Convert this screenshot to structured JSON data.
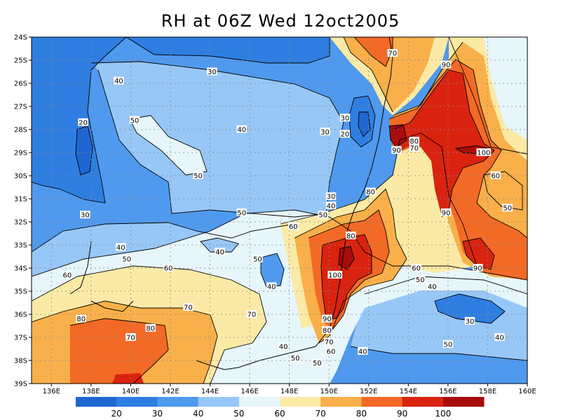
{
  "title": "RH at 06Z Wed 12oct2005",
  "chart_data": {
    "type": "filled-contour-map",
    "variable": "Relative Humidity",
    "lon_range": [
      135,
      160
    ],
    "lat_range": [
      -39,
      -24
    ],
    "x_ticks": [
      "136E",
      "138E",
      "140E",
      "142E",
      "144E",
      "146E",
      "148E",
      "150E",
      "152E",
      "154E",
      "156E",
      "158E",
      "160E"
    ],
    "y_ticks": [
      "24S",
      "25S",
      "26S",
      "27S",
      "28S",
      "29S",
      "30S",
      "31S",
      "32S",
      "33S",
      "34S",
      "35S",
      "36S",
      "37S",
      "38S",
      "39S"
    ],
    "contour_levels": [
      10,
      20,
      30,
      40,
      50,
      60,
      70,
      80,
      90,
      100,
      110
    ],
    "colorbar": {
      "labels": [
        "20",
        "30",
        "40",
        "50",
        "60",
        "70",
        "80",
        "90",
        "100"
      ],
      "colors": [
        "#1f66d3",
        "#2e7ee2",
        "#4f99ee",
        "#97c7f7",
        "#e6f6fb",
        "#fbeaa6",
        "#f9b04a",
        "#f26a26",
        "#d9230f",
        "#a80c0c"
      ]
    },
    "contour_labels": [
      {
        "text": "30",
        "lon": 144.1,
        "lat": -25.5
      },
      {
        "text": "40",
        "lon": 139.4,
        "lat": -25.9
      },
      {
        "text": "20",
        "lon": 137.6,
        "lat": -27.7
      },
      {
        "text": "50",
        "lon": 140.2,
        "lat": -27.6
      },
      {
        "text": "40",
        "lon": 145.6,
        "lat": -28.0
      },
      {
        "text": "50",
        "lon": 143.4,
        "lat": -30.0
      },
      {
        "text": "30",
        "lon": 137.7,
        "lat": -31.7
      },
      {
        "text": "50",
        "lon": 145.6,
        "lat": -31.6
      },
      {
        "text": "40",
        "lon": 139.5,
        "lat": -33.1
      },
      {
        "text": "50",
        "lon": 139.8,
        "lat": -33.6
      },
      {
        "text": "40",
        "lon": 144.5,
        "lat": -33.3
      },
      {
        "text": "50",
        "lon": 146.4,
        "lat": -33.6
      },
      {
        "text": "60",
        "lon": 141.9,
        "lat": -34.0
      },
      {
        "text": "60",
        "lon": 136.8,
        "lat": -34.3
      },
      {
        "text": "40",
        "lon": 147.1,
        "lat": -34.8
      },
      {
        "text": "70",
        "lon": 142.9,
        "lat": -35.7
      },
      {
        "text": "70",
        "lon": 146.1,
        "lat": -36.0
      },
      {
        "text": "80",
        "lon": 137.5,
        "lat": -36.2
      },
      {
        "text": "80",
        "lon": 141.0,
        "lat": -36.6
      },
      {
        "text": "70",
        "lon": 140.0,
        "lat": -37.0
      },
      {
        "text": "30",
        "lon": 150.8,
        "lat": -27.5
      },
      {
        "text": "20",
        "lon": 150.8,
        "lat": -28.2
      },
      {
        "text": "30",
        "lon": 149.8,
        "lat": -28.1
      },
      {
        "text": "70",
        "lon": 153.2,
        "lat": -24.7
      },
      {
        "text": "90",
        "lon": 155.9,
        "lat": -25.2
      },
      {
        "text": "80",
        "lon": 154.3,
        "lat": -28.5
      },
      {
        "text": "70",
        "lon": 154.3,
        "lat": -28.8
      },
      {
        "text": "90",
        "lon": 153.4,
        "lat": -28.9
      },
      {
        "text": "100",
        "lon": 157.8,
        "lat": -29.0
      },
      {
        "text": "60",
        "lon": 158.4,
        "lat": -30.0
      },
      {
        "text": "50",
        "lon": 159.0,
        "lat": -31.4
      },
      {
        "text": "90",
        "lon": 155.9,
        "lat": -31.6
      },
      {
        "text": "80",
        "lon": 152.1,
        "lat": -30.7
      },
      {
        "text": "30",
        "lon": 150.1,
        "lat": -30.9
      },
      {
        "text": "40",
        "lon": 150.1,
        "lat": -31.3
      },
      {
        "text": "50",
        "lon": 149.7,
        "lat": -31.7
      },
      {
        "text": "60",
        "lon": 148.2,
        "lat": -32.2
      },
      {
        "text": "80",
        "lon": 151.1,
        "lat": -32.6
      },
      {
        "text": "100",
        "lon": 150.3,
        "lat": -34.3
      },
      {
        "text": "90",
        "lon": 157.5,
        "lat": -34.0
      },
      {
        "text": "60",
        "lon": 154.4,
        "lat": -34.0
      },
      {
        "text": "50",
        "lon": 154.6,
        "lat": -34.5
      },
      {
        "text": "40",
        "lon": 155.2,
        "lat": -34.8
      },
      {
        "text": "90",
        "lon": 149.9,
        "lat": -36.2
      },
      {
        "text": "80",
        "lon": 149.9,
        "lat": -36.7
      },
      {
        "text": "70",
        "lon": 150.0,
        "lat": -37.2
      },
      {
        "text": "60",
        "lon": 150.1,
        "lat": -37.6
      },
      {
        "text": "50",
        "lon": 148.3,
        "lat": -37.9
      },
      {
        "text": "40",
        "lon": 147.7,
        "lat": -37.4
      },
      {
        "text": "50",
        "lon": 149.4,
        "lat": -38.1
      },
      {
        "text": "40",
        "lon": 151.7,
        "lat": -37.6
      },
      {
        "text": "30",
        "lon": 157.1,
        "lat": -36.3
      },
      {
        "text": "40",
        "lon": 158.6,
        "lat": -37.0
      },
      {
        "text": "50",
        "lon": 156.0,
        "lat": -37.3
      }
    ]
  }
}
